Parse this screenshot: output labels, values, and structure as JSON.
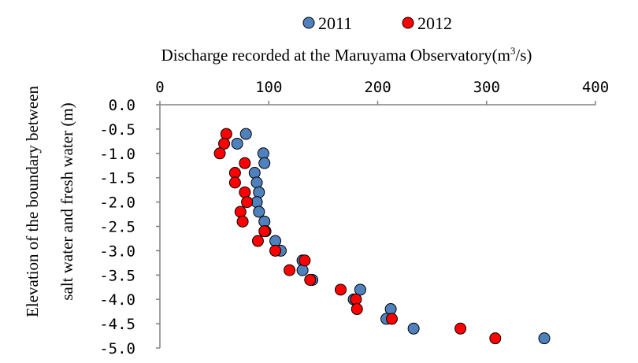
{
  "chart_data": {
    "type": "scatter",
    "xlabel_main": "Discharge recorded at the Maruyama Observatory(m",
    "xlabel_sup": "3",
    "xlabel_tail": "/s)",
    "ylabel_line1": "Elevation of the boundary between",
    "ylabel_line2": "salt water and fresh water (m)",
    "xlim": [
      0,
      400
    ],
    "ylim": [
      -5.0,
      0.0
    ],
    "x_axis_position": "top",
    "x_ticks": [
      0,
      100,
      200,
      300,
      400
    ],
    "x_tick_labels": [
      "0",
      "100",
      "200",
      "300",
      "400"
    ],
    "y_ticks": [
      0.0,
      -0.5,
      -1.0,
      -1.5,
      -2.0,
      -2.5,
      -3.0,
      -3.5,
      -4.0,
      -4.5,
      -5.0
    ],
    "y_tick_labels": [
      "0.0",
      "-0.5",
      "-1.0",
      "-1.5",
      "-2.0",
      "-2.5",
      "-3.0",
      "-3.5",
      "-4.0",
      "-4.5",
      "-5.0"
    ],
    "grid": false,
    "legend_position": "top-center",
    "series": [
      {
        "name": "2011",
        "color": "#4f81bd",
        "points": [
          {
            "x": 79,
            "y": -0.6
          },
          {
            "x": 71,
            "y": -0.8
          },
          {
            "x": 95,
            "y": -1.0
          },
          {
            "x": 96,
            "y": -1.2
          },
          {
            "x": 87,
            "y": -1.4
          },
          {
            "x": 89,
            "y": -1.6
          },
          {
            "x": 91,
            "y": -1.8
          },
          {
            "x": 89,
            "y": -2.0
          },
          {
            "x": 91,
            "y": -2.2
          },
          {
            "x": 96,
            "y": -2.4
          },
          {
            "x": 97,
            "y": -2.6
          },
          {
            "x": 106,
            "y": -2.8
          },
          {
            "x": 111,
            "y": -3.0
          },
          {
            "x": 131,
            "y": -3.2
          },
          {
            "x": 131,
            "y": -3.4
          },
          {
            "x": 140,
            "y": -3.6
          },
          {
            "x": 184,
            "y": -3.8
          },
          {
            "x": 178,
            "y": -4.0
          },
          {
            "x": 212,
            "y": -4.2
          },
          {
            "x": 208,
            "y": -4.4
          },
          {
            "x": 233,
            "y": -4.6
          },
          {
            "x": 353,
            "y": -4.8
          }
        ]
      },
      {
        "name": "2012",
        "color": "#ff0000",
        "points": [
          {
            "x": 61,
            "y": -0.6
          },
          {
            "x": 59,
            "y": -0.8
          },
          {
            "x": 55,
            "y": -1.0
          },
          {
            "x": 78,
            "y": -1.2
          },
          {
            "x": 69,
            "y": -1.4
          },
          {
            "x": 69,
            "y": -1.6
          },
          {
            "x": 78,
            "y": -1.8
          },
          {
            "x": 80,
            "y": -2.0
          },
          {
            "x": 74,
            "y": -2.2
          },
          {
            "x": 76,
            "y": -2.4
          },
          {
            "x": 96,
            "y": -2.6
          },
          {
            "x": 90,
            "y": -2.8
          },
          {
            "x": 106,
            "y": -3.0
          },
          {
            "x": 133,
            "y": -3.2
          },
          {
            "x": 119,
            "y": -3.4
          },
          {
            "x": 138,
            "y": -3.6
          },
          {
            "x": 166,
            "y": -3.8
          },
          {
            "x": 180,
            "y": -4.0
          },
          {
            "x": 181,
            "y": -4.2
          },
          {
            "x": 213,
            "y": -4.4
          },
          {
            "x": 276,
            "y": -4.6
          },
          {
            "x": 308,
            "y": -4.8
          }
        ]
      }
    ]
  }
}
